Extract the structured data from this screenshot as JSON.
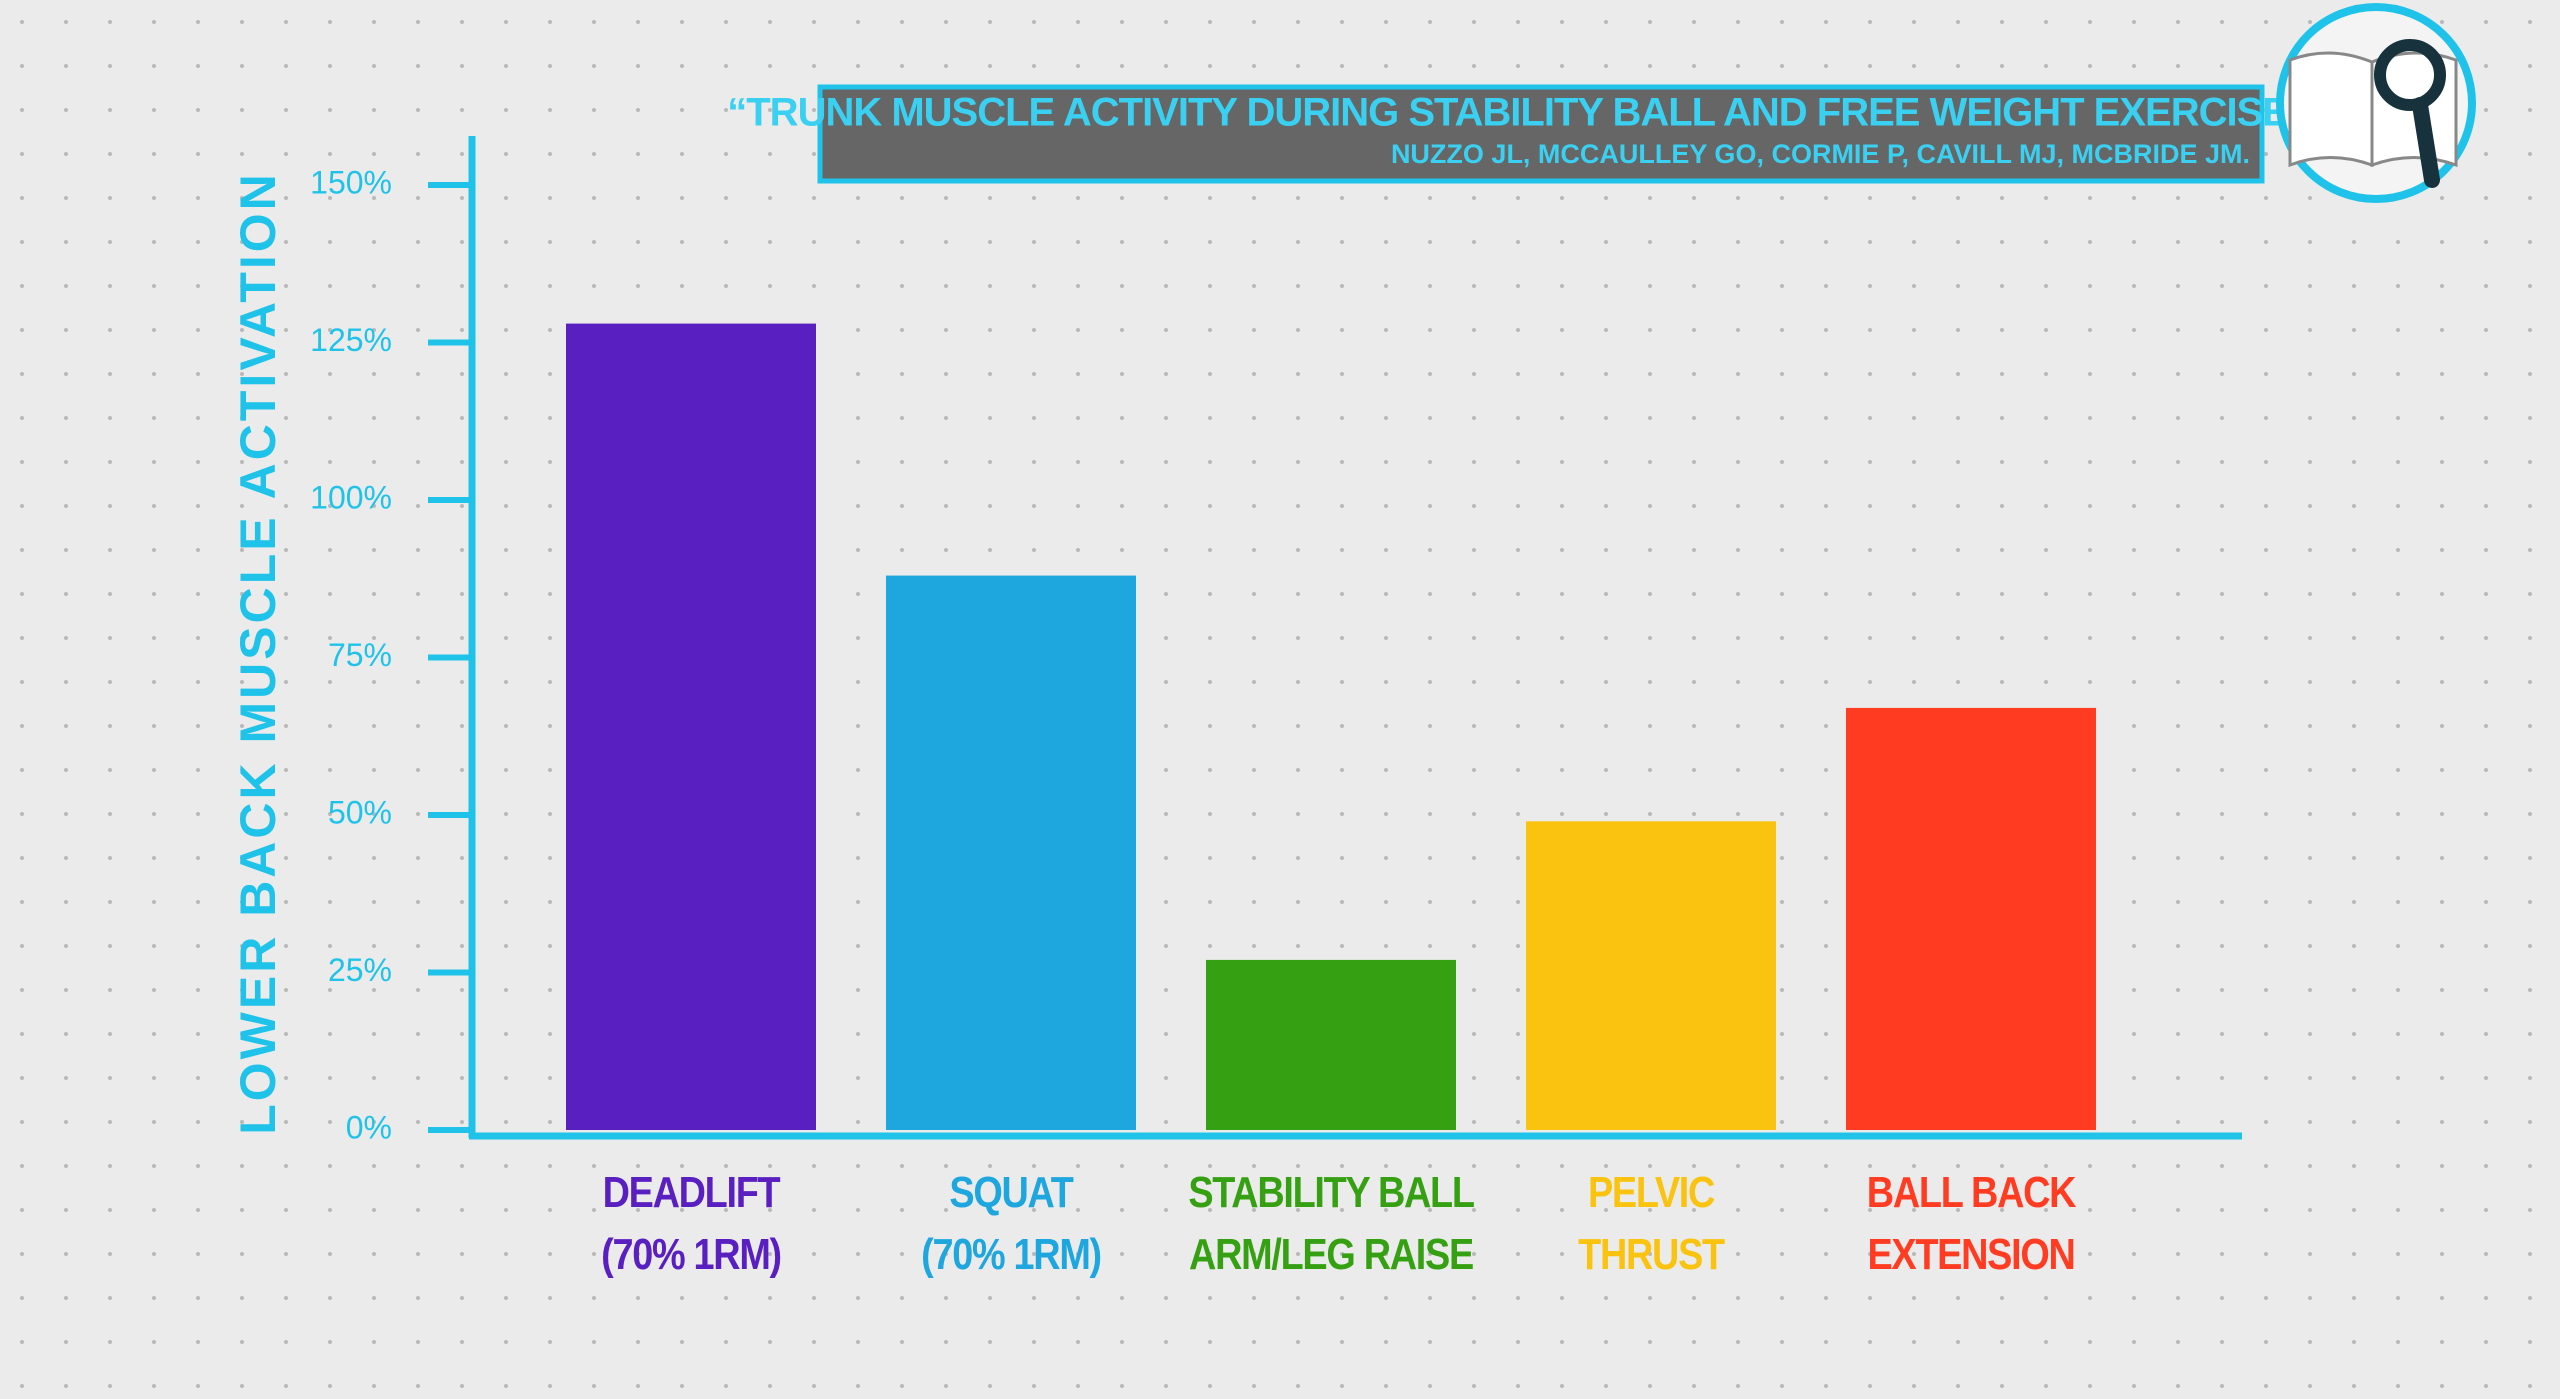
{
  "chart_data": {
    "type": "bar",
    "title": "“TRUNK MUSCLE ACTIVITY DURING STABILITY BALL AND FREE WEIGHT EXERCISES.”",
    "subtitle": "NUZZO JL, MCCAULLEY GO, CORMIE P, CAVILL MJ, MCBRIDE JM.",
    "y_label": "LOWER BACK MUSCLE ACTIVATION",
    "categories": [
      "DEADLIFT\n(70% 1RM)",
      "SQUAT\n(70% 1RM)",
      "STABILITY BALL\nARM/LEG RAISE",
      "PELVIC\nTHRUST",
      "BALL BACK\nEXTENSION"
    ],
    "values": [
      128,
      88,
      27,
      49,
      67
    ],
    "colors": [
      "#5a1fc0",
      "#1ea6de",
      "#35a012",
      "#f9c30f",
      "#ff3b22"
    ],
    "ylim": [
      0,
      150
    ],
    "yticks": [
      {
        "value": 0,
        "label": "0%"
      },
      {
        "value": 25,
        "label": "25%"
      },
      {
        "value": 50,
        "label": "50%"
      },
      {
        "value": 75,
        "label": "75%"
      },
      {
        "value": 100,
        "label": "100%"
      },
      {
        "value": 125,
        "label": "125%"
      },
      {
        "value": 150,
        "label": "150%"
      }
    ],
    "grid": false
  }
}
